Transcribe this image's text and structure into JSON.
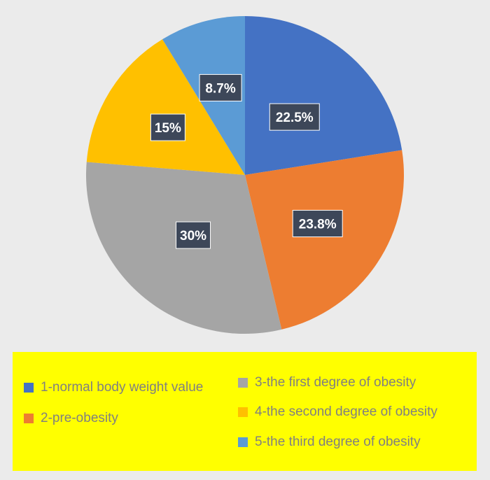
{
  "chart_data": {
    "type": "pie",
    "categories": [
      "1-normal body weight value",
      "2-pre-obesity",
      "3-the first degree of obesity",
      "4-the second degree of obesity",
      "5-the third degree of obesity"
    ],
    "values": [
      22.5,
      23.8,
      30,
      15,
      8.7
    ],
    "data_labels": [
      "22.5%",
      "23.8%",
      "30%",
      "15%",
      "8.7%"
    ],
    "colors": [
      "#4472c4",
      "#ed7d31",
      "#a5a5a5",
      "#ffc000",
      "#5b9bd5"
    ],
    "start_angle": "12 o'clock",
    "direction": "clockwise",
    "legend": {
      "placement": "bottom",
      "background": "#ffff00"
    }
  }
}
